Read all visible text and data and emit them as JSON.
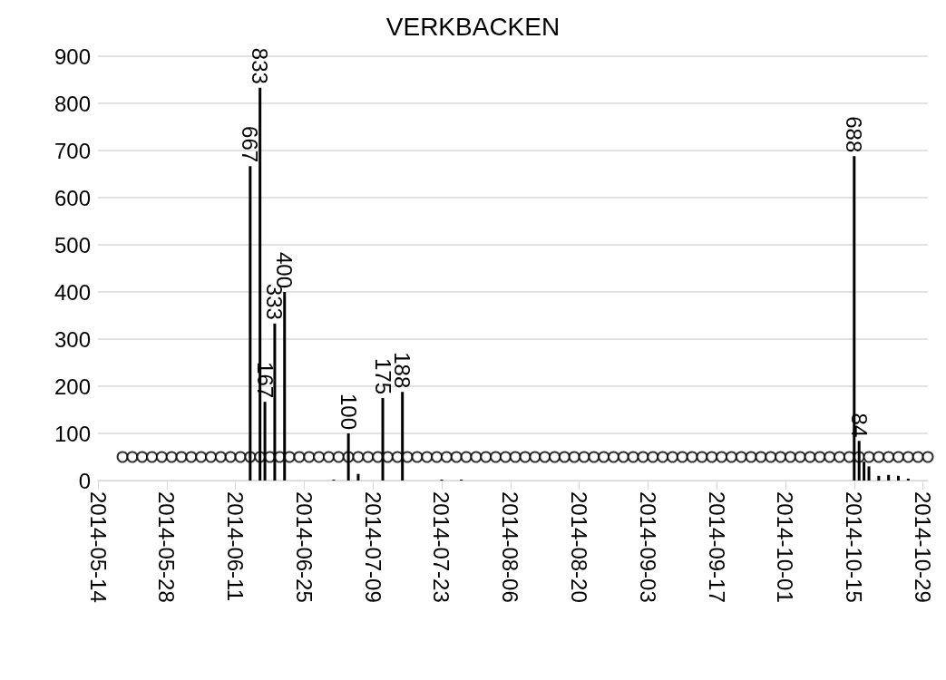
{
  "chart_data": {
    "type": "bar",
    "title": "VERKBACKEN",
    "xlim": [
      "2014-05-14",
      "2014-10-30"
    ],
    "xticks": [
      "2014-05-14",
      "2014-05-28",
      "2014-06-11",
      "2014-06-25",
      "2014-07-09",
      "2014-07-23",
      "2014-08-06",
      "2014-08-20",
      "2014-09-03",
      "2014-09-17",
      "2014-10-01",
      "2014-10-15",
      "2014-10-29"
    ],
    "ylim": [
      0,
      900
    ],
    "yticks": [
      0,
      100,
      200,
      300,
      400,
      500,
      600,
      700,
      800,
      900
    ],
    "grid": "y",
    "series": [
      {
        "color": "#000000",
        "value_labels": [
          "667",
          "833",
          "167",
          "333",
          "400",
          null,
          "100",
          null,
          "175",
          "188",
          null,
          null,
          "688",
          "84",
          null,
          null,
          null,
          null,
          null,
          null
        ],
        "x": [
          "2014-06-14",
          "2014-06-16",
          "2014-06-17",
          "2014-06-19",
          "2014-06-21",
          "2014-07-01",
          "2014-07-04",
          "2014-07-06",
          "2014-07-11",
          "2014-07-15",
          "2014-07-23",
          "2014-07-27",
          "2014-10-15",
          "2014-10-16",
          "2014-10-17",
          "2014-10-18",
          "2014-10-20",
          "2014-10-22",
          "2014-10-24",
          "2014-10-26"
        ],
        "values": [
          667,
          833,
          167,
          333,
          400,
          2,
          100,
          14,
          175,
          188,
          2,
          2,
          688,
          84,
          40,
          30,
          10,
          12,
          10,
          4
        ]
      },
      {
        "type": "scatter",
        "color": "#000000",
        "marker": "circle",
        "x": [
          "2014-05-19",
          "2014-05-21",
          "2014-05-23",
          "2014-05-25",
          "2014-05-27",
          "2014-05-29",
          "2014-05-31",
          "2014-06-02",
          "2014-06-04",
          "2014-06-06",
          "2014-06-08",
          "2014-06-10",
          "2014-06-12",
          "2014-06-14",
          "2014-06-16",
          "2014-06-18",
          "2014-06-20",
          "2014-06-22",
          "2014-06-24",
          "2014-06-26",
          "2014-06-28",
          "2014-06-30",
          "2014-07-02",
          "2014-07-04",
          "2014-07-06",
          "2014-07-08",
          "2014-07-10",
          "2014-07-12",
          "2014-07-14",
          "2014-07-16",
          "2014-07-18",
          "2014-07-20",
          "2014-07-22",
          "2014-07-24",
          "2014-07-26",
          "2014-07-28",
          "2014-07-30",
          "2014-08-01",
          "2014-08-03",
          "2014-08-05",
          "2014-08-07",
          "2014-08-09",
          "2014-08-11",
          "2014-08-13",
          "2014-08-15",
          "2014-08-17",
          "2014-08-19",
          "2014-08-21",
          "2014-08-23",
          "2014-08-25",
          "2014-08-27",
          "2014-08-29",
          "2014-08-31",
          "2014-09-02",
          "2014-09-04",
          "2014-09-06",
          "2014-09-08",
          "2014-09-10",
          "2014-09-12",
          "2014-09-14",
          "2014-09-16",
          "2014-09-18",
          "2014-09-20",
          "2014-09-22",
          "2014-09-24",
          "2014-09-26",
          "2014-09-28",
          "2014-09-30",
          "2014-10-02",
          "2014-10-04",
          "2014-10-06",
          "2014-10-08",
          "2014-10-10",
          "2014-10-12",
          "2014-10-14",
          "2014-10-16",
          "2014-10-18",
          "2014-10-20",
          "2014-10-22",
          "2014-10-24",
          "2014-10-26",
          "2014-10-28",
          "2014-10-30"
        ],
        "values": [
          50,
          50,
          50,
          50,
          50,
          50,
          50,
          50,
          50,
          50,
          50,
          50,
          50,
          50,
          50,
          50,
          50,
          50,
          50,
          50,
          50,
          50,
          50,
          50,
          50,
          50,
          50,
          50,
          50,
          50,
          50,
          50,
          50,
          50,
          50,
          50,
          50,
          50,
          50,
          50,
          50,
          50,
          50,
          50,
          50,
          50,
          50,
          50,
          50,
          50,
          50,
          50,
          50,
          50,
          50,
          50,
          50,
          50,
          50,
          50,
          50,
          50,
          50,
          50,
          50,
          50,
          50,
          50,
          50,
          50,
          50,
          50,
          50,
          50,
          50,
          50,
          50,
          50,
          50,
          50,
          50,
          50,
          50
        ]
      }
    ]
  }
}
